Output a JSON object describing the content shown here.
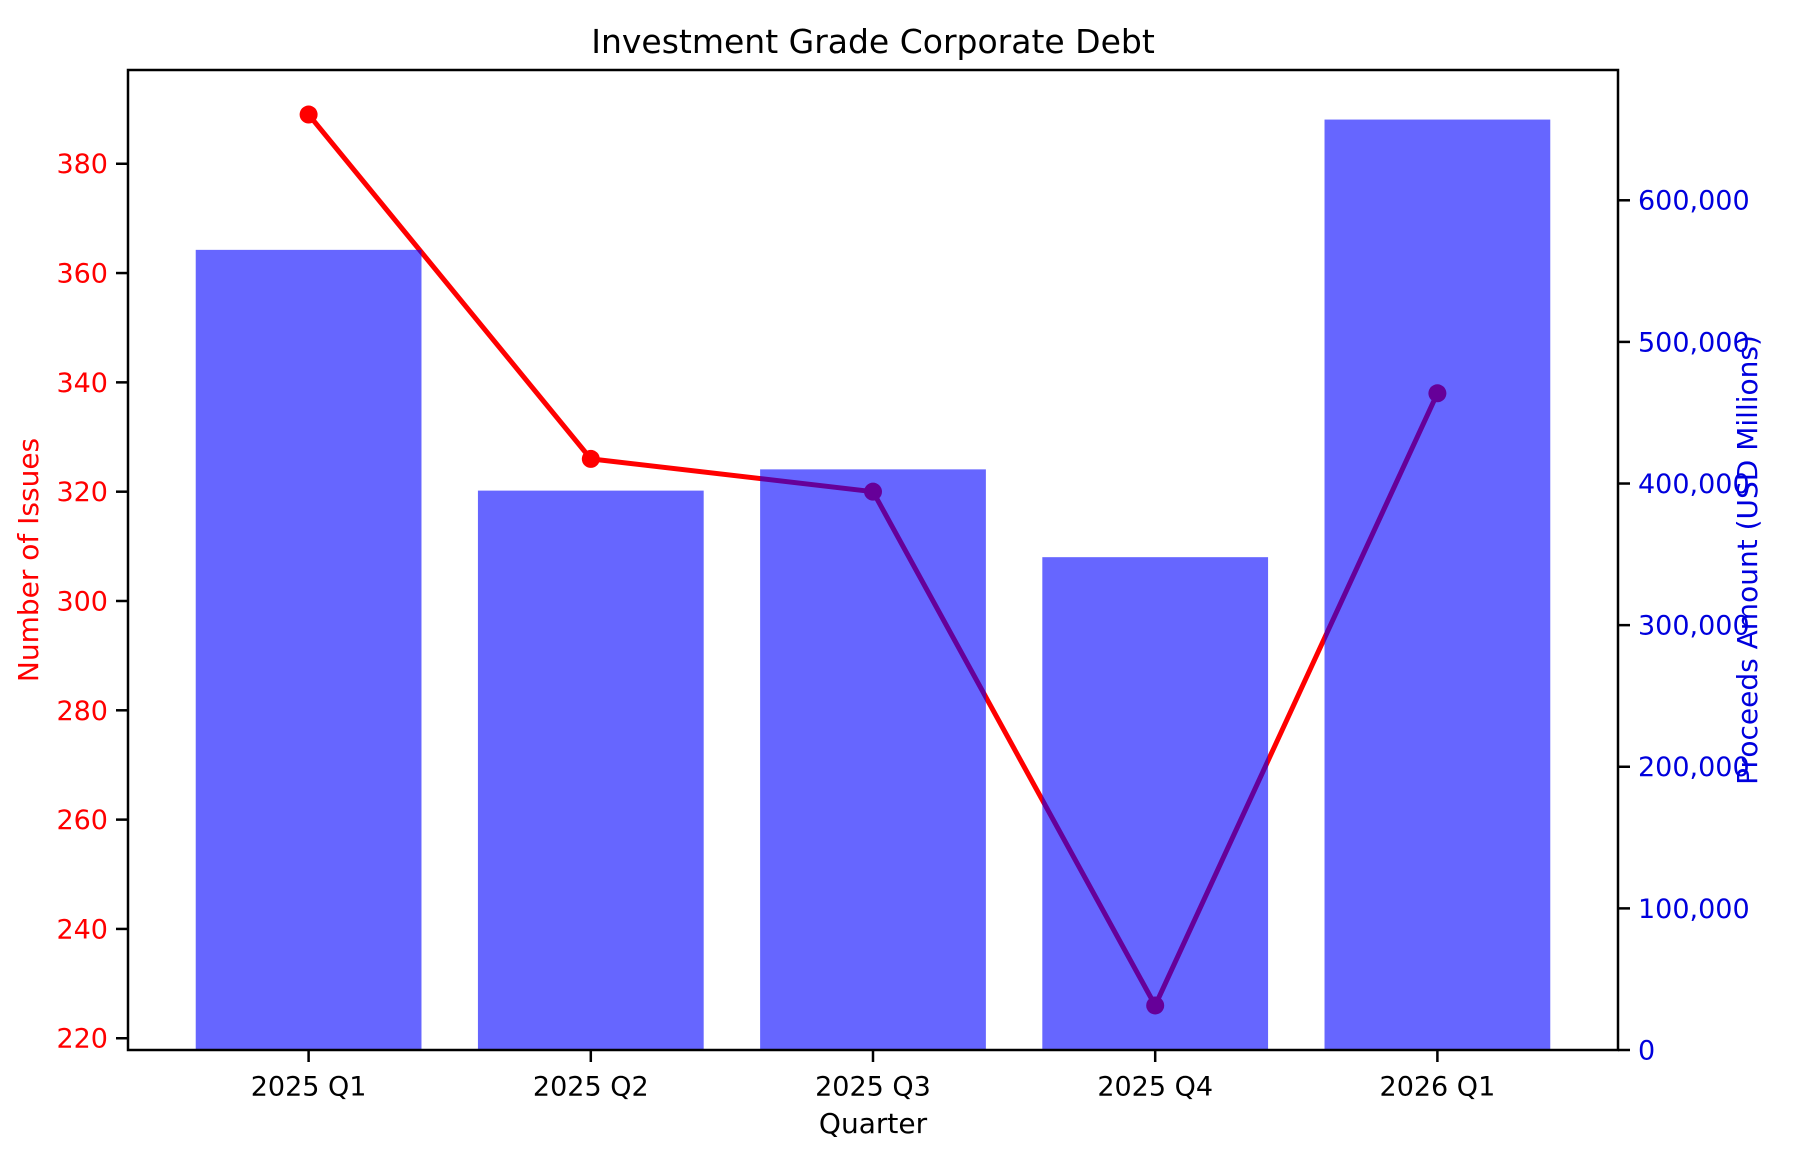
{
  "chart_data": {
    "type": "bar+line",
    "title": "Investment Grade Corporate Debt",
    "categories": [
      "2025 Q1",
      "2025 Q2",
      "2025 Q3",
      "2025 Q4",
      "2026 Q1"
    ],
    "series": [
      {
        "name": "Number of Issues",
        "type": "line",
        "axis": "left",
        "color": "#ff0000",
        "marker": "circle",
        "values": [
          389,
          326,
          320,
          226,
          338
        ]
      },
      {
        "name": "Proceeds Amount (USD Millions)",
        "type": "bar",
        "axis": "right",
        "color": "#0000ff",
        "opacity": 0.6,
        "values": [
          565000,
          395000,
          410000,
          348000,
          657000
        ]
      }
    ],
    "x_axis": {
      "label": "Quarter",
      "color": "#000000"
    },
    "left_axis": {
      "label": "Number of Issues",
      "color": "#ff0000",
      "ticks": [
        220,
        240,
        260,
        280,
        300,
        320,
        340,
        360,
        380
      ],
      "lim": [
        217.85,
        397.15
      ]
    },
    "right_axis": {
      "label": "Proceeds Amount (USD Millions)",
      "color": "#0000dd",
      "ticks": [
        0,
        100000,
        200000,
        300000,
        400000,
        500000,
        600000
      ],
      "lim": [
        0,
        692000
      ]
    },
    "grid": false,
    "legend": "none"
  }
}
